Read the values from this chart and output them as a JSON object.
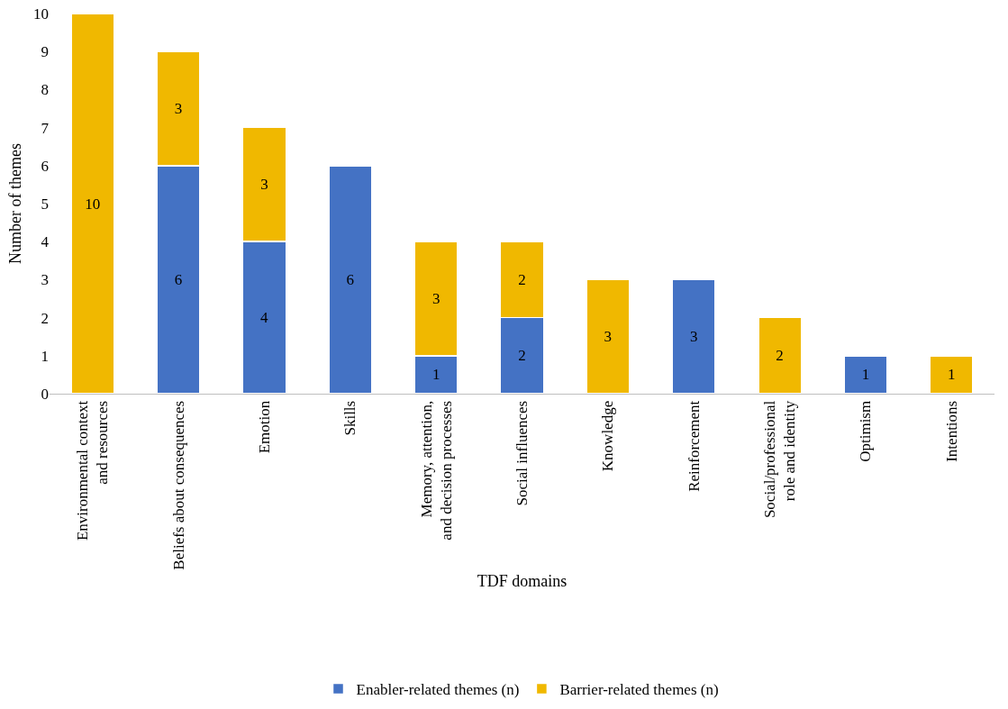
{
  "chart_data": {
    "type": "bar",
    "stacked": true,
    "xlabel": "TDF domains",
    "ylabel": "Number of themes",
    "categories": [
      "Environmental context and resources",
      "Beliefs about consequences",
      "Emotion",
      "Skills",
      "Memory, attention, and decision processes",
      "Social influences",
      "Knowledge",
      "Reinforcement",
      "Social/professional role and identity",
      "Optimism",
      "Intentions"
    ],
    "series": [
      {
        "name": "Enabler-related themes (n)",
        "color": "#4472c4",
        "values": [
          null,
          6,
          4,
          6,
          1,
          2,
          null,
          3,
          null,
          1,
          null
        ]
      },
      {
        "name": "Barrier-related themes (n)",
        "color": "#f0b800",
        "values": [
          10,
          3,
          3,
          null,
          3,
          2,
          3,
          null,
          2,
          null,
          1
        ]
      }
    ],
    "ylim": [
      0,
      10
    ],
    "yticks": [
      0,
      1,
      2,
      3,
      4,
      5,
      6,
      7,
      8,
      9,
      10
    ],
    "grid": false,
    "legend": "bottom",
    "data_labels": true
  }
}
